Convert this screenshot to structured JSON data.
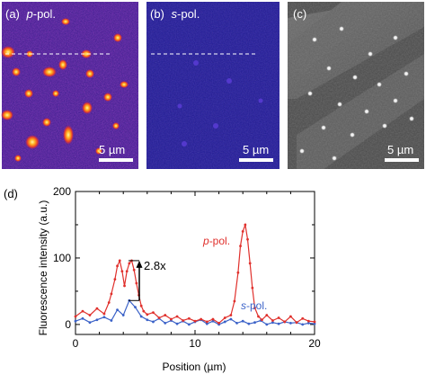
{
  "panels": {
    "a": {
      "label": "(a)",
      "pol": "p",
      "pol_suffix": "-pol.",
      "scalebar": "5 µm",
      "colormap": "fire",
      "bg": "#3a1a8a"
    },
    "b": {
      "label": "(b)",
      "pol": "s",
      "pol_suffix": "-pol.",
      "scalebar": "5 µm",
      "colormap": "fire",
      "bg": "#1f1a90"
    },
    "c": {
      "label": "(c)",
      "scalebar": "5 µm",
      "colormap": "gray"
    },
    "d": {
      "label": "(d)"
    }
  },
  "chart_data": {
    "type": "line",
    "xlabel": "Position (µm)",
    "ylabel": "Fluorescence intensity (a.u.)",
    "xlim": [
      0,
      20
    ],
    "ylim": [
      -15,
      200
    ],
    "xticks": [
      0,
      10,
      20
    ],
    "yticks": [
      0,
      100,
      200
    ],
    "grid": false,
    "series": [
      {
        "name": "p-pol.",
        "color": "#e0302c",
        "x": [
          0,
          0.6,
          1.2,
          1.8,
          2.4,
          2.8,
          3.0,
          3.3,
          3.5,
          3.7,
          3.9,
          4.1,
          4.3,
          4.5,
          4.7,
          4.9,
          5.1,
          5.3,
          5.5,
          5.7,
          6.0,
          6.5,
          7.0,
          7.5,
          8.0,
          8.5,
          9.0,
          9.5,
          10.0,
          10.5,
          11.0,
          11.5,
          12.0,
          12.5,
          13.0,
          13.3,
          13.6,
          13.8,
          14.0,
          14.2,
          14.4,
          14.6,
          14.8,
          15.0,
          15.3,
          15.6,
          16.0,
          16.5,
          17.0,
          17.5,
          18.0,
          18.5,
          19.0,
          19.5,
          20.0
        ],
        "values": [
          12,
          20,
          14,
          24,
          16,
          33,
          46,
          68,
          88,
          96,
          80,
          58,
          80,
          92,
          96,
          82,
          62,
          44,
          28,
          20,
          15,
          18,
          10,
          14,
          8,
          12,
          6,
          9,
          5,
          8,
          4,
          8,
          2,
          10,
          14,
          35,
          78,
          118,
          140,
          150,
          128,
          92,
          55,
          25,
          12,
          7,
          14,
          6,
          10,
          4,
          12,
          3,
          9,
          5,
          4
        ]
      },
      {
        "name": "s-pol.",
        "color": "#3b62c8",
        "x": [
          0,
          0.6,
          1.2,
          1.8,
          2.4,
          3.0,
          3.5,
          4.0,
          4.5,
          5.0,
          5.5,
          6.0,
          6.5,
          7.0,
          7.5,
          8.0,
          8.5,
          9.0,
          9.5,
          10.0,
          10.5,
          11.0,
          11.5,
          12.0,
          12.5,
          13.0,
          13.5,
          14.0,
          14.5,
          15.0,
          15.5,
          16.0,
          16.5,
          17.0,
          17.5,
          18.0,
          18.5,
          19.0,
          19.5,
          20.0
        ],
        "values": [
          5,
          9,
          3,
          7,
          11,
          6,
          22,
          14,
          36,
          26,
          12,
          7,
          4,
          9,
          2,
          6,
          1,
          5,
          0,
          4,
          7,
          1,
          5,
          0,
          4,
          8,
          2,
          5,
          1,
          3,
          6,
          0,
          3,
          1,
          4,
          2,
          3,
          0,
          2,
          1
        ]
      }
    ],
    "annotations": {
      "ratio_text": "2.8x",
      "p_label_main": "p",
      "p_label_suffix": "-pol.",
      "s_label_main": "s",
      "s_label_suffix": "-pol."
    }
  }
}
